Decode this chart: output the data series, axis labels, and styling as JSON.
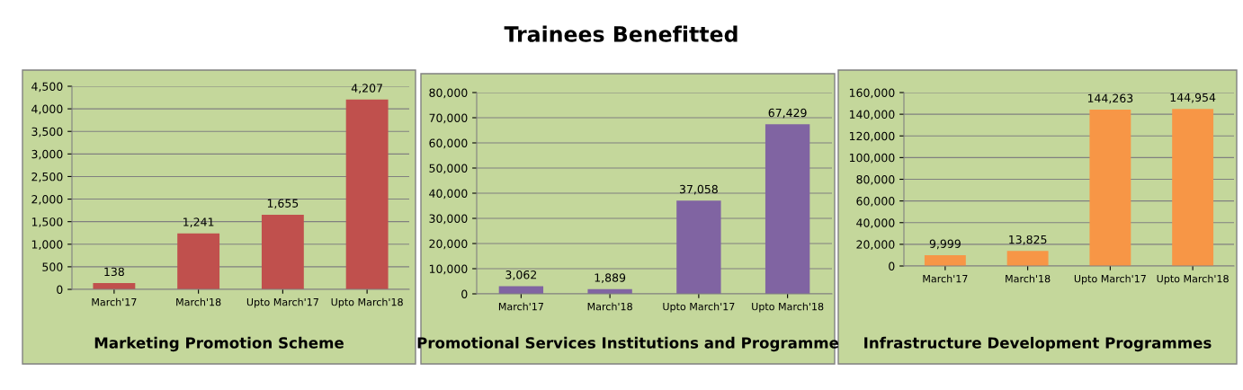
{
  "chart_data": [
    {
      "type": "other",
      "title": "Trainees Benefitted"
    },
    {
      "type": "bar",
      "title": "Marketing Promotion Scheme",
      "categories": [
        "March'17",
        "March'18",
        "Upto March'17",
        "Upto March'18"
      ],
      "values": [
        138,
        1241,
        1655,
        4207
      ],
      "value_labels": [
        "138",
        "1,241",
        "1,655",
        "4,207"
      ],
      "color": "#c0504d",
      "ylim": [
        0,
        4500
      ],
      "yticks": [
        0,
        500,
        {
          "value": 1000,
          "label": "1,000"
        },
        {
          "value": 1500,
          "label": "1,500"
        },
        {
          "value": 2000,
          "label": "2,000"
        },
        {
          "value": 2500,
          "label": "2,500"
        },
        {
          "value": 3000,
          "label": "3,000"
        },
        {
          "value": 3500,
          "label": "3,500"
        },
        {
          "value": 4000,
          "label": "4,000"
        },
        {
          "value": 4500,
          "label": "4,500"
        }
      ],
      "grid": "y"
    },
    {
      "type": "bar",
      "title": "Promotional Services Institutions and Programme",
      "categories": [
        "March'17",
        "March'18",
        "Upto March'17",
        "Upto March'18"
      ],
      "values": [
        3062,
        1889,
        37058,
        67429
      ],
      "value_labels": [
        "3,062",
        "1,889",
        "37,058",
        "67,429"
      ],
      "color": "#8064a2",
      "ylim": [
        0,
        80000
      ],
      "yticks": [
        0,
        {
          "value": 10000,
          "label": "10,000"
        },
        {
          "value": 20000,
          "label": "20,000"
        },
        {
          "value": 30000,
          "label": "30,000"
        },
        {
          "value": 40000,
          "label": "40,000"
        },
        {
          "value": 50000,
          "label": "50,000"
        },
        {
          "value": 60000,
          "label": "60,000"
        },
        {
          "value": 70000,
          "label": "70,000"
        },
        {
          "value": 80000,
          "label": "80,000"
        }
      ],
      "grid": "y"
    },
    {
      "type": "bar",
      "title": "Infrastructure Development Programmes",
      "categories": [
        "March'17",
        "March'18",
        "Upto March'17",
        "Upto March'18"
      ],
      "values": [
        9999,
        13825,
        144263,
        144954
      ],
      "value_labels": [
        "9,999",
        "13,825",
        "144,263",
        "144,954"
      ],
      "color": "#f79646",
      "ylim": [
        0,
        160000
      ],
      "yticks": [
        0,
        {
          "value": 20000,
          "label": "20,000"
        },
        {
          "value": 40000,
          "label": "40,000"
        },
        {
          "value": 60000,
          "label": "60,000"
        },
        {
          "value": 80000,
          "label": "80,000"
        },
        {
          "value": 100000,
          "label": "100,000"
        },
        {
          "value": 120000,
          "label": "120,000"
        },
        {
          "value": 140000,
          "label": "140,000"
        },
        {
          "value": 160000,
          "label": "160,000"
        }
      ],
      "grid": "y"
    }
  ]
}
